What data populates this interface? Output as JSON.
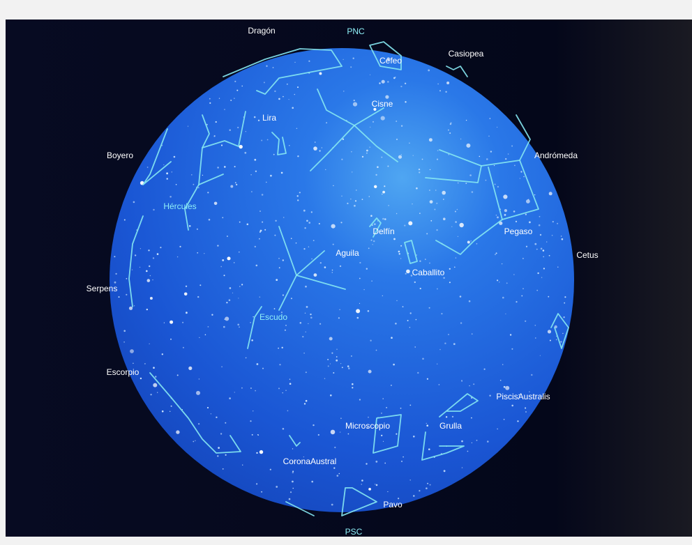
{
  "poles": {
    "north": "PNC",
    "south": "PSC"
  },
  "outer_labels": [
    "Dragón",
    "Casiopea",
    "Boyero",
    "Andrómeda",
    "Cetus",
    "Serpens",
    "Escorpio",
    "PiscisAustralis"
  ],
  "inner_labels": [
    "Cefeo",
    "Cisne",
    "Lira",
    "Hércules",
    "Delfín",
    "Pegaso",
    "Aguila",
    "Caballito",
    "Escudo",
    "Microscopio",
    "Grulla",
    "CoronaAustral",
    "Pavo"
  ]
}
